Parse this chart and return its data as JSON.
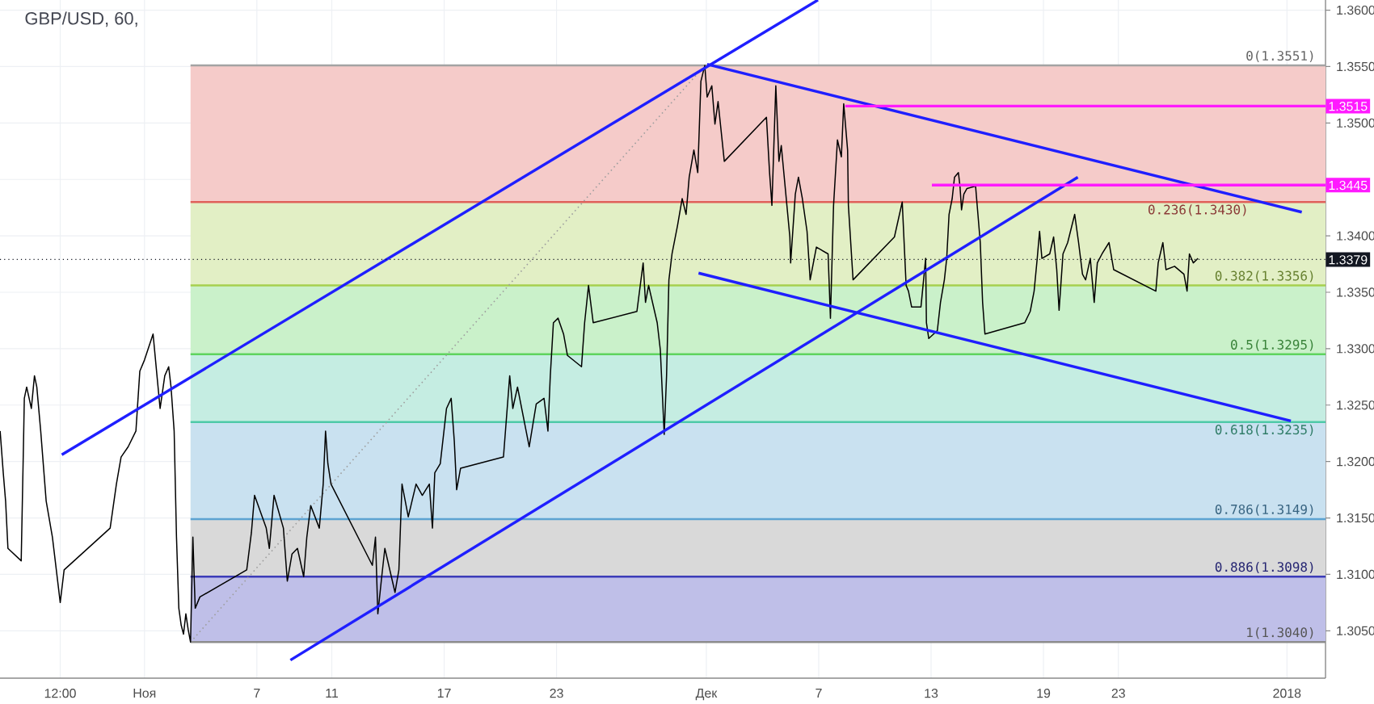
{
  "chart_data": {
    "type": "line",
    "title": "GBP/USD, 60,",
    "xlim": [
      "2017-10-24T06:50",
      "2018-01-03T01:25"
    ],
    "ylim": [
      1.3008,
      1.3609
    ],
    "xticks": [
      {
        "value": "2017-10-27T12:00",
        "label": "12:00"
      },
      {
        "value": "2017-11-01",
        "label": "Ноя"
      },
      {
        "value": "2017-11-07",
        "label": "7"
      },
      {
        "value": "2017-11-11",
        "label": "11"
      },
      {
        "value": "2017-11-17",
        "label": "17"
      },
      {
        "value": "2017-11-23",
        "label": "23"
      },
      {
        "value": "2017-12-01",
        "label": "Дек"
      },
      {
        "value": "2017-12-07",
        "label": "7"
      },
      {
        "value": "2017-12-13",
        "label": "13"
      },
      {
        "value": "2017-12-19",
        "label": "19"
      },
      {
        "value": "2017-12-23",
        "label": "23"
      },
      {
        "value": "2018-01-01",
        "label": "2018"
      }
    ],
    "yticks": [
      {
        "value": 1.305,
        "label": "1.3050"
      },
      {
        "value": 1.31,
        "label": "1.3100"
      },
      {
        "value": 1.315,
        "label": "1.3150"
      },
      {
        "value": 1.32,
        "label": "1.3200"
      },
      {
        "value": 1.325,
        "label": "1.3250"
      },
      {
        "value": 1.33,
        "label": "1.3300"
      },
      {
        "value": 1.335,
        "label": "1.3350"
      },
      {
        "value": 1.34,
        "label": "1.3400"
      },
      {
        "value": 1.345,
        "label": null
      },
      {
        "value": 1.35,
        "label": "1.3500"
      },
      {
        "value": 1.355,
        "label": "1.3550"
      },
      {
        "value": 1.36,
        "label": "1.3600"
      }
    ],
    "grid": true,
    "series": [
      {
        "x": [
          "2017-11-03T11:00",
          "2018-01-03T01:25"
        ],
        "values": [
          1.3551,
          1.3551
        ],
        "color": "#a3a3a3"
      },
      {
        "x": [
          "2017-11-03T11:00",
          "2018-01-03T01:25"
        ],
        "values": [
          1.343,
          1.343
        ],
        "lower": [
          1.343,
          1.343
        ],
        "upper": [
          1.3551,
          1.3551
        ],
        "color": "#e0605a"
      },
      {
        "x": [
          "2017-11-03T11:00",
          "2018-01-03T01:25"
        ],
        "values": [
          1.3356,
          1.3356
        ],
        "lower": [
          1.3356,
          1.3356
        ],
        "upper": [
          1.343,
          1.343
        ],
        "color": "#a6d04e"
      },
      {
        "x": [
          "2017-11-03T11:00",
          "2018-01-03T01:25"
        ],
        "values": [
          1.3295,
          1.3295
        ],
        "lower": [
          1.3295,
          1.3295
        ],
        "upper": [
          1.3356,
          1.3356
        ],
        "color": "#5ed45e"
      },
      {
        "x": [
          "2017-11-03T11:00",
          "2018-01-03T01:25"
        ],
        "values": [
          1.3235,
          1.3235
        ],
        "lower": [
          1.3235,
          1.3235
        ],
        "upper": [
          1.3295,
          1.3295
        ],
        "color": "#4ec9a8"
      },
      {
        "x": [
          "2017-11-03T11:00",
          "2018-01-03T01:25"
        ],
        "values": [
          1.3149,
          1.3149
        ],
        "lower": [
          1.3149,
          1.3149
        ],
        "upper": [
          1.3235,
          1.3235
        ],
        "color": "#5ca3d2"
      },
      {
        "x": [
          "2017-11-03T11:00",
          "2018-01-03T01:25"
        ],
        "values": [
          1.3098,
          1.3098
        ],
        "lower": [
          1.304,
          1.304
        ],
        "upper": [
          1.3098,
          1.3098
        ],
        "color": "#3c3cb8"
      },
      {
        "x": [
          "2017-11-03T11:00",
          "2018-01-03T01:25"
        ],
        "values": [
          1.304,
          1.304
        ],
        "lower": [
          1.3098,
          1.3098
        ],
        "upper": [
          1.3149,
          1.3149
        ],
        "color": "#8c8c8c"
      },
      {
        "x": [
          "2017-11-03T11:00",
          "2017-11-30T22:00"
        ],
        "values": [
          1.304,
          1.3551
        ],
        "color": "#9e9e9e",
        "line_style": "dotted"
      },
      {
        "color": "#000000",
        "x": [
          "2017-10-24T07:00",
          "2017-10-24T11:00",
          "2017-10-24T14:00",
          "2017-10-24T17:00",
          "2017-10-25T10:00",
          "2017-10-25T13:00",
          "2017-10-25T14:00",
          "2017-10-25T17:00",
          "2017-10-25T23:00",
          "2017-10-26T03:00",
          "2017-10-26T06:00",
          "2017-10-26T11:00",
          "2017-10-26T18:00",
          "2017-10-27T02:00",
          "2017-10-27T12:00",
          "2017-10-27T17:00",
          "2017-10-30T04:00",
          "2017-10-30T12:00",
          "2017-10-30T18:00",
          "2017-10-31T03:00",
          "2017-10-31T13:00",
          "2017-10-31T18:00",
          "2017-11-01T00:00",
          "2017-11-01T11:00",
          "2017-11-01T16:00",
          "2017-11-01T20:00",
          "2017-11-02T02:00",
          "2017-11-02T07:00",
          "2017-11-02T10:00",
          "2017-11-02T14:00",
          "2017-11-02T17:00",
          "2017-11-02T20:00",
          "2017-11-02T23:00",
          "2017-11-03T02:00",
          "2017-11-03T05:00",
          "2017-11-03T08:00",
          "2017-11-03T11:00",
          "2017-11-03T14:00",
          "2017-11-03T17:00",
          "2017-11-03T23:00",
          "2017-11-06T11:00",
          "2017-11-06T17:00",
          "2017-11-06T21:00",
          "2017-11-07T12:00",
          "2017-11-07T16:00",
          "2017-11-07T22:00",
          "2017-11-08T10:00",
          "2017-11-08T15:00",
          "2017-11-08T21:00",
          "2017-11-09T04:00",
          "2017-11-09T12:00",
          "2017-11-09T16:00",
          "2017-11-09T21:00",
          "2017-11-10T08:00",
          "2017-11-10T13:00",
          "2017-11-10T16:00",
          "2017-11-10T19:00",
          "2017-11-10T23:00",
          "2017-11-13T04:00",
          "2017-11-13T08:00",
          "2017-11-13T11:00",
          "2017-11-13T16:00",
          "2017-11-13T20:00",
          "2017-11-14T09:00",
          "2017-11-14T14:00",
          "2017-11-14T18:00",
          "2017-11-15T02:00",
          "2017-11-15T12:00",
          "2017-11-15T20:00",
          "2017-11-16T05:00",
          "2017-11-16T09:00",
          "2017-11-16T12:00",
          "2017-11-16T19:00",
          "2017-11-17T03:00",
          "2017-11-17T09:00",
          "2017-11-17T13:00",
          "2017-11-17T16:00",
          "2017-11-17T21:00",
          "2017-11-20T04:00",
          "2017-11-20T12:00",
          "2017-11-20T16:00",
          "2017-11-20T22:00",
          "2017-11-21T13:00",
          "2017-11-21T22:00",
          "2017-11-22T08:00",
          "2017-11-22T13:00",
          "2017-11-22T16:00",
          "2017-11-22T20:00",
          "2017-11-23T02:00",
          "2017-11-23T09:00",
          "2017-11-23T14:00",
          "2017-11-24T08:00",
          "2017-11-24T12:00",
          "2017-11-24T17:00",
          "2017-11-24T23:00",
          "2017-11-27T07:00",
          "2017-11-27T15:00",
          "2017-11-27T18:00",
          "2017-11-27T22:00",
          "2017-11-28T09:00",
          "2017-11-28T13:00",
          "2017-11-28T18:00",
          "2017-11-28T21:00",
          "2017-11-29T00:00",
          "2017-11-29T04:00",
          "2017-11-29T11:00",
          "2017-11-29T17:00",
          "2017-11-29T22:00",
          "2017-11-30T02:00",
          "2017-11-30T08:00",
          "2017-11-30T13:00",
          "2017-11-30T17:00",
          "2017-11-30T22:00",
          "2017-12-01T01:00",
          "2017-12-01T07:00",
          "2017-12-01T11:00",
          "2017-12-01T15:00",
          "2017-12-01T23:00",
          "2017-12-04T05:00",
          "2017-12-04T09:00",
          "2017-12-04T12:00",
          "2017-12-04T17:00",
          "2017-12-04T21:00",
          "2017-12-05T00:00",
          "2017-12-05T11:00",
          "2017-12-05T12:00",
          "2017-12-05T18:00",
          "2017-12-05T22:00",
          "2017-12-06T03:00",
          "2017-12-06T09:00",
          "2017-12-06T13:00",
          "2017-12-06T21:00",
          "2017-12-07T12:00",
          "2017-12-07T15:00",
          "2017-12-07T19:00",
          "2017-12-08T00:00",
          "2017-12-08T05:00",
          "2017-12-08T08:00",
          "2017-12-08T13:00",
          "2017-12-08T14:00",
          "2017-12-08T20:00",
          "2017-12-11T01:00",
          "2017-12-11T11:00",
          "2017-12-11T16:00",
          "2017-12-11T19:00",
          "2017-12-11T23:00",
          "2017-12-12T11:00",
          "2017-12-12T17:00",
          "2017-12-12T18:00",
          "2017-12-12T21:00",
          "2017-12-13T08:00",
          "2017-12-13T12:00",
          "2017-12-13T17:00",
          "2017-12-13T20:00",
          "2017-12-13T23:00",
          "2017-12-14T03:00",
          "2017-12-14T06:00",
          "2017-12-14T11:00",
          "2017-12-14T13:00",
          "2017-12-14T15:00",
          "2017-12-14T18:00",
          "2017-12-14T22:00",
          "2017-12-15T09:00",
          "2017-12-15T12:00",
          "2017-12-15T15:00",
          "2017-12-15T18:00",
          "2017-12-15T21:00",
          "2017-12-18T00:00",
          "2017-12-18T07:00",
          "2017-12-18T12:00",
          "2017-12-18T16:00",
          "2017-12-18T19:00",
          "2017-12-18T22:00",
          "2017-12-19T08:00",
          "2017-12-19T13:00",
          "2017-12-19T17:00",
          "2017-12-19T20:00",
          "2017-12-20T01:00",
          "2017-12-20T07:00",
          "2017-12-20T16:00",
          "2017-12-20T21:00",
          "2017-12-21T02:00",
          "2017-12-21T06:00",
          "2017-12-21T12:00",
          "2017-12-21T17:00",
          "2017-12-21T21:00",
          "2017-12-22T03:00",
          "2017-12-22T12:00",
          "2017-12-22T18:00",
          "2017-12-25T00:00",
          "2017-12-25T03:00",
          "2017-12-25T09:00",
          "2017-12-25T13:00",
          "2017-12-26T00:00",
          "2017-12-26T12:00",
          "2017-12-26T16:00",
          "2017-12-26T19:00",
          "2017-12-27T00:00",
          "2017-12-27T06:00"
        ],
        "values": [
          1.3227,
          1.319,
          1.3165,
          1.3123,
          1.3112,
          1.3218,
          1.3256,
          1.3266,
          1.3247,
          1.3276,
          1.3266,
          1.3227,
          1.3165,
          1.3133,
          1.3075,
          1.3104,
          1.3141,
          1.318,
          1.3204,
          1.3213,
          1.3227,
          1.328,
          1.329,
          1.3313,
          1.3276,
          1.3247,
          1.3276,
          1.3284,
          1.3266,
          1.3227,
          1.3133,
          1.307,
          1.3055,
          1.3047,
          1.3065,
          1.3051,
          1.304,
          1.3133,
          1.307,
          1.308,
          1.3104,
          1.3137,
          1.317,
          1.3141,
          1.3123,
          1.317,
          1.3141,
          1.3094,
          1.3118,
          1.3123,
          1.3098,
          1.3133,
          1.3161,
          1.3141,
          1.318,
          1.3227,
          1.3198,
          1.318,
          1.3108,
          1.3133,
          1.3065,
          1.3098,
          1.3123,
          1.3084,
          1.3104,
          1.318,
          1.3151,
          1.318,
          1.317,
          1.318,
          1.3141,
          1.319,
          1.3198,
          1.3247,
          1.3256,
          1.3218,
          1.3175,
          1.3194,
          1.3204,
          1.3276,
          1.3247,
          1.3266,
          1.3213,
          1.3251,
          1.3256,
          1.3227,
          1.3276,
          1.3323,
          1.3327,
          1.3313,
          1.3294,
          1.3284,
          1.3323,
          1.3356,
          1.3323,
          1.3333,
          1.3376,
          1.3341,
          1.3356,
          1.3323,
          1.3299,
          1.3224,
          1.3276,
          1.3361,
          1.3384,
          1.3409,
          1.3433,
          1.3419,
          1.3452,
          1.3476,
          1.3456,
          1.3537,
          1.3551,
          1.3523,
          1.3533,
          1.3499,
          1.3519,
          1.3466,
          1.3505,
          1.3456,
          1.3427,
          1.3533,
          1.3466,
          1.348,
          1.3399,
          1.3376,
          1.3437,
          1.3452,
          1.3433,
          1.3404,
          1.3361,
          1.339,
          1.3384,
          1.3327,
          1.3427,
          1.3485,
          1.347,
          1.3517,
          1.3476,
          1.3427,
          1.3361,
          1.3399,
          1.343,
          1.3356,
          1.3351,
          1.3337,
          1.3337,
          1.338,
          1.3323,
          1.3309,
          1.3316,
          1.3341,
          1.3361,
          1.338,
          1.3419,
          1.3433,
          1.3452,
          1.3456,
          1.3444,
          1.3423,
          1.3437,
          1.3442,
          1.3444,
          1.3419,
          1.3394,
          1.3341,
          1.3313,
          1.3323,
          1.3333,
          1.3351,
          1.338,
          1.3404,
          1.338,
          1.3384,
          1.3399,
          1.337,
          1.3334,
          1.3384,
          1.3394,
          1.3419,
          1.3394,
          1.3366,
          1.3361,
          1.338,
          1.3341,
          1.3376,
          1.3384,
          1.3394,
          1.337,
          1.3351,
          1.3376,
          1.3394,
          1.337,
          1.3373,
          1.3366,
          1.3351,
          1.3384,
          1.3376,
          1.338
        ]
      },
      {
        "x": [
          "2017-10-27T14:00",
          "2017-12-06T23:00"
        ],
        "values": [
          1.3206,
          1.3609
        ],
        "color": "#1f1fff"
      },
      {
        "x": [
          "2017-11-08T19:00",
          "2017-12-20T20:00"
        ],
        "values": [
          1.3024,
          1.3452
        ],
        "color": "#1f1fff"
      },
      {
        "x": [
          "2017-12-01T01:00",
          "2018-01-01T19:00"
        ],
        "values": [
          1.3552,
          1.3421
        ],
        "color": "#1f1fff"
      },
      {
        "x": [
          "2017-11-30T14:00",
          "2018-01-01T05:00"
        ],
        "values": [
          1.3367,
          1.3236
        ],
        "color": "#1f1fff"
      },
      {
        "x": [
          "2017-12-08T10:00",
          "2018-01-03T01:25"
        ],
        "values": [
          1.3515,
          1.3515
        ],
        "color": "#ff1aff",
        "value_labels": [
          null,
          "1.3515"
        ]
      },
      {
        "x": [
          "2017-12-13T01:00",
          "2018-01-03T01:25"
        ],
        "values": [
          1.3445,
          1.3445
        ],
        "color": "#ff1aff",
        "value_labels": [
          null,
          "1.3445"
        ]
      }
    ],
    "ref_lines": [
      {
        "axis": "y",
        "value": 1.3379,
        "label": "1.3379",
        "color": "#131722",
        "line_style": "dotted"
      }
    ],
    "annotations": [
      {
        "text": "0(1.3551)",
        "x": "2018-01-03T01:25",
        "y": 1.3551
      },
      {
        "text": "0.236(1.3430)",
        "x": "2017-12-31T00:00",
        "y": 1.343
      },
      {
        "text": "0.382(1.3356)",
        "x": "2018-01-03T01:25",
        "y": 1.3356
      },
      {
        "text": "0.5(1.3295)",
        "x": "2018-01-03T01:25",
        "y": 1.3295
      },
      {
        "text": "0.618(1.3235)",
        "x": "2018-01-03T01:25",
        "y": 1.3235
      },
      {
        "text": "0.786(1.3149)",
        "x": "2018-01-03T01:25",
        "y": 1.3149
      },
      {
        "text": "0.886(1.3098)",
        "x": "2018-01-03T01:25",
        "y": 1.3098
      },
      {
        "text": "1(1.3040)",
        "x": "2018-01-03T01:25",
        "y": 1.304
      }
    ]
  }
}
